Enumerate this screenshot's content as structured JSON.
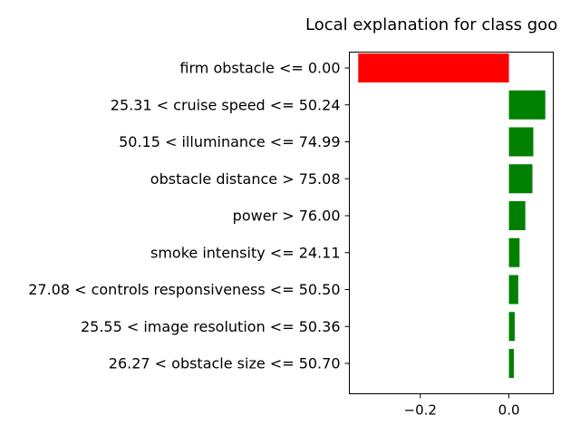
{
  "chart_data": {
    "type": "bar",
    "orientation": "horizontal",
    "title": "Local explanation for class goo",
    "xlabel": "",
    "ylabel": "",
    "xlim": [
      -0.36,
      0.1
    ],
    "xticks": [
      -0.2,
      0.0
    ],
    "xtick_labels": [
      "−0.2",
      "0.0"
    ],
    "grid": false,
    "legend": "none",
    "positive_color": "#008000",
    "negative_color": "#ff0000",
    "categories": [
      "firm obstacle <= 0.00",
      "25.31 < cruise speed <= 50.24",
      "50.15 < illuminance <= 74.99",
      "obstacle distance > 75.08",
      "power > 76.00",
      "smoke intensity <= 24.11",
      "27.08 < controls responsiveness <= 50.50",
      "25.55 < image resolution <= 50.36",
      "26.27 < obstacle size <= 50.70"
    ],
    "values": [
      -0.34,
      0.082,
      0.055,
      0.053,
      0.037,
      0.024,
      0.021,
      0.013,
      0.011
    ]
  }
}
